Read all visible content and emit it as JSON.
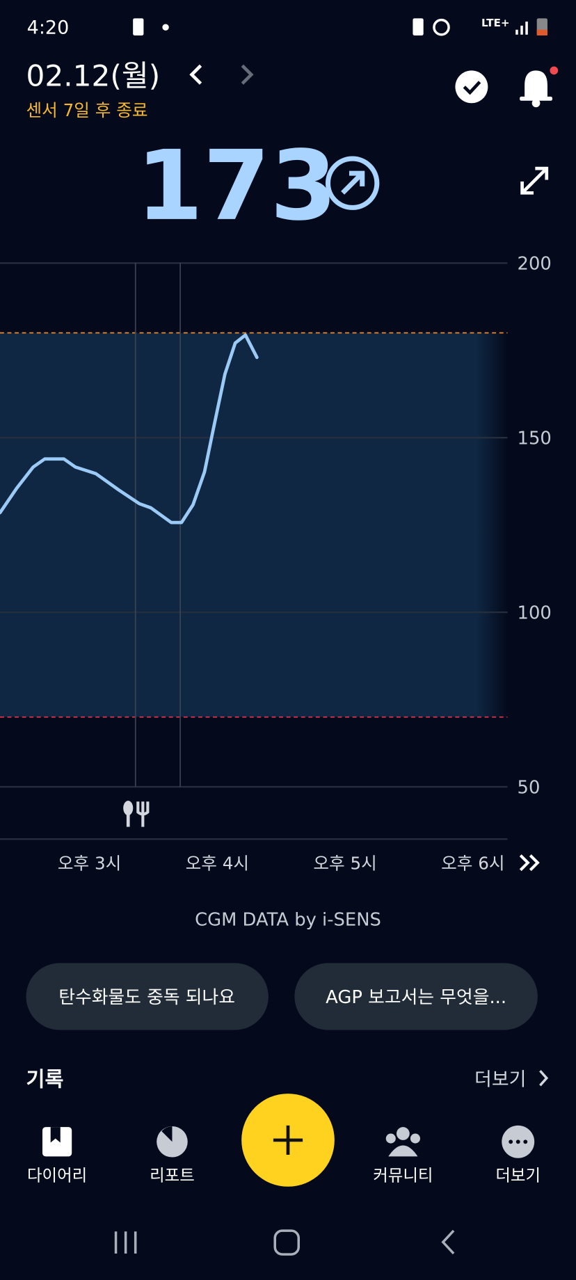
{
  "status_bar": {
    "time": "4:20",
    "network": "LTE+"
  },
  "header": {
    "date": "02.12(월)",
    "sensor_note": "센서 7일 후 종료"
  },
  "current": {
    "value": 173
  },
  "chart_data": {
    "type": "line",
    "x": [
      14.3,
      14.43,
      14.56,
      14.65,
      14.8,
      14.89,
      15.05,
      15.23,
      15.39,
      15.48,
      15.64,
      15.72,
      15.81,
      15.9,
      15.97,
      16.06,
      16.14,
      16.22,
      16.31
    ],
    "values": [
      128.5,
      135.5,
      141.6,
      143.9,
      143.9,
      141.6,
      139.7,
      135.0,
      131.1,
      129.9,
      125.7,
      125.7,
      130.8,
      140.2,
      152.6,
      168.2,
      177.1,
      179.4,
      173
    ],
    "color": "#9ccaf7",
    "xlim": [
      14.3,
      18.27
    ],
    "xticks": [
      {
        "value": 15,
        "label": "오후 3시"
      },
      {
        "value": 16,
        "label": "오후 4시"
      },
      {
        "value": 17,
        "label": "오후 5시"
      },
      {
        "value": 18,
        "label": "오후 6시"
      }
    ],
    "ylim": [
      50,
      200
    ],
    "yticks": [
      200,
      150,
      100,
      50
    ],
    "grid": true,
    "target_range": [
      70,
      180
    ],
    "target_colors": [
      "#e0304a",
      "#f08a2a"
    ],
    "markers": [
      15.36,
      15.71
    ],
    "source": "CGM DATA by i-SENS"
  },
  "suggestions": [
    "탄수화물도 중독 되나요",
    "AGP 보고서는 무엇을..."
  ],
  "records": {
    "title": "기록",
    "more": "더보기"
  },
  "nav": [
    "다이어리",
    "리포트",
    "커뮤니티",
    "더보기"
  ]
}
